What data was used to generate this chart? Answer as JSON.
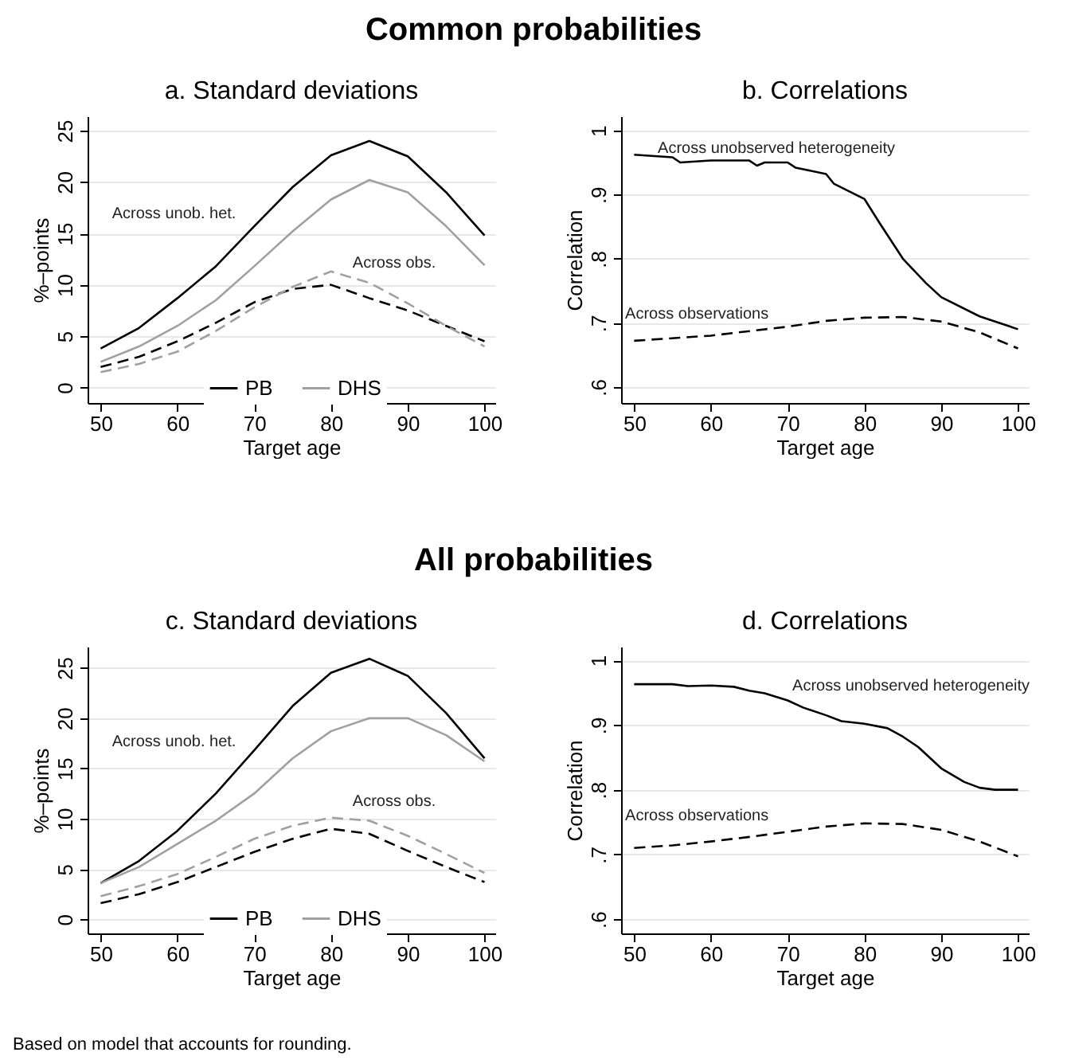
{
  "chart_data": [
    {
      "type": "other",
      "title": "Common probabilities"
    },
    {
      "type": "line",
      "title": "a. Standard deviations",
      "xlabel": "Target age",
      "ylabel": "%–points",
      "x": [
        50,
        55,
        60,
        65,
        70,
        75,
        80,
        85,
        90,
        95,
        100
      ],
      "series": [
        {
          "name": "PB",
          "color": "#000000",
          "line_style": "solid",
          "values": [
            3.8,
            5.8,
            8.7,
            11.8,
            15.7,
            19.5,
            22.6,
            24,
            22.5,
            19,
            14.8
          ]
        },
        {
          "name": "DHS",
          "color": "#a0a0a0",
          "line_style": "solid",
          "values": [
            2.5,
            4,
            6,
            8.5,
            11.8,
            15.2,
            18.3,
            20.2,
            19,
            15.7,
            11.9
          ]
        },
        {
          "color": "#000000",
          "line_style": "dashed",
          "values": [
            2,
            3,
            4.5,
            6.3,
            8.3,
            9.6,
            10,
            8.7,
            7.5,
            6,
            4.5
          ]
        },
        {
          "color": "#a0a0a0",
          "line_style": "dashed",
          "values": [
            1.5,
            2.3,
            3.5,
            5.5,
            7.8,
            9.8,
            11.3,
            10.2,
            8.2,
            6,
            4
          ]
        }
      ],
      "xlim": [
        48.3,
        101.4
      ],
      "xticks": [
        50,
        60,
        70,
        80,
        90,
        100
      ],
      "ylim": [
        -1.5,
        26.4
      ],
      "yticks": [
        0,
        5,
        10,
        15,
        20,
        25
      ],
      "grid": "y",
      "legend": "bottom",
      "annotations": [
        "Across unob. het.",
        "Across obs."
      ]
    },
    {
      "type": "line",
      "title": "b. Correlations",
      "xlabel": "Target age",
      "ylabel": "Correlation",
      "series": [
        {
          "color": "#000000",
          "line_style": "solid",
          "x": [
            50,
            55,
            56,
            60,
            65,
            66,
            67,
            70,
            71,
            75,
            76,
            80,
            82,
            85,
            88,
            90,
            95,
            100
          ],
          "values": [
            0.962,
            0.958,
            0.95,
            0.953,
            0.953,
            0.945,
            0.95,
            0.95,
            0.942,
            0.932,
            0.917,
            0.893,
            0.855,
            0.8,
            0.762,
            0.74,
            0.71,
            0.69
          ]
        },
        {
          "color": "#000000",
          "line_style": "dashed",
          "x": [
            50,
            60,
            70,
            75,
            80,
            85,
            90,
            95,
            100
          ],
          "values": [
            0.672,
            0.68,
            0.694,
            0.703,
            0.708,
            0.709,
            0.702,
            0.685,
            0.66
          ]
        }
      ],
      "xlim": [
        48.3,
        101.4
      ],
      "xticks": [
        50,
        60,
        70,
        80,
        90,
        100
      ],
      "ylim": [
        0.575,
        1.022
      ],
      "yticks": [
        {
          "value": 0.6,
          "label": ".6"
        },
        {
          "value": 0.7,
          "label": ".7"
        },
        {
          "value": 0.8,
          "label": ".8"
        },
        {
          "value": 0.9,
          "label": ".9"
        },
        1
      ],
      "grid": "y",
      "annotations": [
        "Across unobserved heterogeneity",
        "Across observations"
      ]
    },
    {
      "type": "other",
      "title": "All probabilities"
    },
    {
      "type": "line",
      "title": "c. Standard deviations",
      "xlabel": "Target age",
      "ylabel": "%–points",
      "x": [
        50,
        55,
        60,
        65,
        70,
        75,
        80,
        85,
        90,
        95,
        100
      ],
      "series": [
        {
          "name": "PB",
          "color": "#000000",
          "line_style": "solid",
          "values": [
            3.6,
            5.8,
            8.8,
            12.5,
            16.8,
            21.2,
            24.5,
            25.9,
            24.2,
            20.5,
            16
          ]
        },
        {
          "name": "DHS",
          "color": "#a0a0a0",
          "line_style": "solid",
          "values": [
            3.6,
            5.2,
            7.5,
            9.8,
            12.5,
            16,
            18.7,
            20,
            20,
            18.3,
            15.7
          ]
        },
        {
          "color": "#000000",
          "line_style": "dashed",
          "values": [
            1.6,
            2.5,
            3.7,
            5.2,
            6.7,
            8,
            9,
            8.5,
            6.8,
            5.2,
            3.7
          ]
        },
        {
          "color": "#a0a0a0",
          "line_style": "dashed",
          "values": [
            2.3,
            3.3,
            4.5,
            6.2,
            8,
            9.3,
            10.1,
            9.8,
            8.3,
            6.5,
            4.6
          ]
        }
      ],
      "xlim": [
        48.3,
        101.4
      ],
      "xticks": [
        50,
        60,
        70,
        80,
        90,
        100
      ],
      "ylim": [
        -1.4,
        27.1
      ],
      "yticks": [
        0,
        5,
        10,
        15,
        20,
        25
      ],
      "grid": "y",
      "legend": "bottom",
      "annotations": [
        "Across unob. het.",
        "Across obs."
      ]
    },
    {
      "type": "line",
      "title": "d. Correlations",
      "xlabel": "Target age",
      "ylabel": "Correlation",
      "series": [
        {
          "color": "#000000",
          "line_style": "solid",
          "x": [
            50,
            55,
            57,
            60,
            63,
            65,
            67,
            70,
            72,
            75,
            77,
            80,
            83,
            85,
            87,
            90,
            93,
            95,
            97,
            100
          ],
          "values": [
            0.963,
            0.963,
            0.96,
            0.961,
            0.959,
            0.953,
            0.949,
            0.938,
            0.927,
            0.915,
            0.906,
            0.902,
            0.895,
            0.882,
            0.866,
            0.833,
            0.812,
            0.803,
            0.8,
            0.8
          ]
        },
        {
          "color": "#000000",
          "line_style": "dashed",
          "x": [
            50,
            55,
            60,
            65,
            70,
            75,
            80,
            85,
            90,
            95,
            100
          ],
          "values": [
            0.71,
            0.714,
            0.72,
            0.727,
            0.735,
            0.743,
            0.748,
            0.747,
            0.738,
            0.72,
            0.697
          ]
        }
      ],
      "xlim": [
        48.3,
        101.4
      ],
      "xticks": [
        50,
        60,
        70,
        80,
        90,
        100
      ],
      "ylim": [
        0.578,
        1.021
      ],
      "yticks": [
        {
          "value": 0.6,
          "label": ".6"
        },
        {
          "value": 0.7,
          "label": ".7"
        },
        {
          "value": 0.8,
          "label": ".8"
        },
        {
          "value": 0.9,
          "label": ".9"
        },
        1
      ],
      "grid": "y",
      "annotations": [
        "Across unobserved heterogeneity",
        "Across observations"
      ]
    },
    {
      "type": "other",
      "annotations": [
        "Based on model that accounts for rounding."
      ]
    }
  ]
}
